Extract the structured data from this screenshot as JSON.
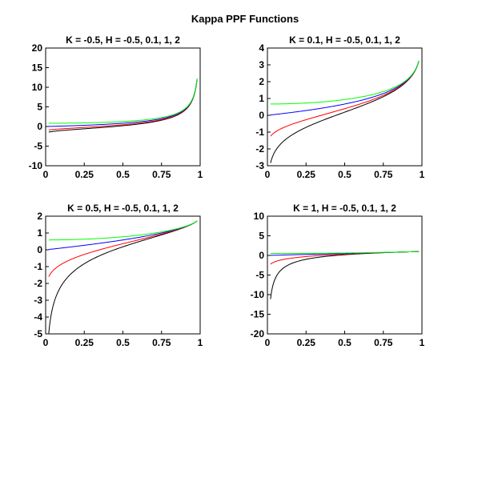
{
  "figure": {
    "title": "Kappa PPF Functions"
  },
  "colors": {
    "H=-0.5": "#000000",
    "H=0.1": "#ff0000",
    "H=1": "#0000ff",
    "H=2": "#00ff00"
  },
  "chart_data": [
    {
      "type": "line",
      "title": "K = -0.5, H = -0.5, 0.1, 1, 2",
      "k": -0.5,
      "xlim": [
        0,
        1
      ],
      "ylim": [
        -10,
        20
      ],
      "xticks": [
        "0",
        "0.25",
        "0.5",
        "0.75",
        "1"
      ],
      "yticks": [
        "-10",
        "-5",
        "0",
        "5",
        "10",
        "15",
        "20"
      ],
      "x": [
        0.02,
        0.25,
        0.5,
        0.75,
        0.85,
        0.9,
        0.95,
        0.98
      ],
      "series": [
        {
          "h": -0.5,
          "color": "#000000",
          "values": [
            -1.2,
            -0.06,
            0.83,
            2.25,
            3.45,
            4.56,
            7.04,
            12.0
          ]
        },
        {
          "h": 0.1,
          "color": "#ff0000",
          "values": [
            -0.73,
            0.09,
            0.9,
            2.25,
            3.41,
            4.5,
            6.95,
            11.9
          ]
        },
        {
          "h": 1,
          "color": "#0000ff",
          "values": [
            0.04,
            0.62,
            1.24,
            2.45,
            3.56,
            4.62,
            7.05,
            12.0
          ]
        },
        {
          "h": 2,
          "color": "#00ff00",
          "values": [
            0.65,
            1.18,
            1.72,
            2.82,
            3.86,
            4.89,
            7.27,
            12.1
          ]
        }
      ]
    },
    {
      "type": "line",
      "title": "K = 0.1, H = -0.5, 0.1, 1, 2",
      "k": 0.1,
      "xlim": [
        0,
        1
      ],
      "ylim": [
        -3,
        4
      ],
      "xticks": [
        "0",
        "0.25",
        "0.5",
        "0.75",
        "1"
      ],
      "yticks": [
        "-3",
        "-2",
        "-1",
        "0",
        "1",
        "2",
        "3",
        "4"
      ],
      "x": [
        0.02,
        0.25,
        0.5,
        0.75,
        0.85,
        0.9,
        0.95,
        0.98
      ],
      "series": [
        {
          "h": -0.5,
          "color": "#000000",
          "values": [
            -2.85,
            -0.52,
            0.3,
            1.16,
            1.69,
            2.09,
            2.7,
            3.3
          ]
        },
        {
          "h": 0.1,
          "color": "#ff0000",
          "values": [
            -1.25,
            -0.2,
            0.4,
            1.18,
            1.7,
            2.1,
            2.7,
            3.3
          ]
        },
        {
          "h": 1,
          "color": "#0000ff",
          "values": [
            0.02,
            0.34,
            0.71,
            1.35,
            1.82,
            2.19,
            2.77,
            3.34
          ]
        },
        {
          "h": 2,
          "color": "#00ff00",
          "values": [
            0.65,
            0.82,
            1.06,
            1.57,
            1.98,
            2.32,
            2.86,
            3.4
          ]
        }
      ]
    },
    {
      "type": "line",
      "title": "K = 0.5, H = -0.5, 0.1, 1, 2",
      "k": 0.5,
      "xlim": [
        0,
        1
      ],
      "ylim": [
        -5,
        2
      ],
      "xticks": [
        "0",
        "0.25",
        "0.5",
        "0.75",
        "1"
      ],
      "yticks": [
        "-5",
        "-4",
        "-3",
        "-2",
        "-1",
        "0",
        "1",
        "2"
      ],
      "x": [
        0.02,
        0.25,
        0.5,
        0.75,
        0.85,
        0.9,
        0.95,
        0.98
      ],
      "series": [
        {
          "h": -0.5,
          "color": "#000000",
          "values": [
            -4.9,
            -0.84,
            0.23,
            0.93,
            1.27,
            1.46,
            1.66,
            1.75
          ]
        },
        {
          "h": 0.1,
          "color": "#ff0000",
          "values": [
            -1.55,
            -0.22,
            0.42,
            0.98,
            1.28,
            1.46,
            1.66,
            1.75
          ]
        },
        {
          "h": 1,
          "color": "#0000ff",
          "values": [
            0.02,
            0.27,
            0.59,
            1.0,
            1.28,
            1.46,
            1.66,
            1.75
          ]
        },
        {
          "h": 2,
          "color": "#00ff00",
          "values": [
            0.6,
            0.68,
            0.84,
            1.14,
            1.36,
            1.51,
            1.69,
            1.77
          ]
        }
      ]
    },
    {
      "type": "line",
      "title": "K = 1, H = -0.5, 0.1, 1, 2",
      "k": 1,
      "xlim": [
        0,
        1
      ],
      "ylim": [
        -20,
        10
      ],
      "xticks": [
        "0",
        "0.25",
        "0.5",
        "0.75",
        "1"
      ],
      "yticks": [
        "-20",
        "-15",
        "-10",
        "-5",
        "0",
        "5",
        "10"
      ],
      "x": [
        0.02,
        0.25,
        0.5,
        0.75,
        0.85,
        0.9,
        0.95,
        0.98
      ],
      "series": [
        {
          "h": -0.5,
          "color": "#000000",
          "values": [
            -10.8,
            -1.36,
            -0.02,
            0.57,
            0.75,
            0.83,
            0.92,
            0.96
          ]
        },
        {
          "h": 0.1,
          "color": "#ff0000",
          "values": [
            -1.95,
            -0.29,
            0.3,
            0.65,
            0.79,
            0.86,
            0.93,
            0.97
          ]
        },
        {
          "h": 1,
          "color": "#0000ff",
          "values": [
            0.02,
            0.25,
            0.5,
            0.75,
            0.85,
            0.9,
            0.95,
            0.98
          ]
        },
        {
          "h": 2,
          "color": "#00ff00",
          "values": [
            0.5,
            0.58,
            0.69,
            0.84,
            0.91,
            0.94,
            0.97,
            0.99
          ]
        }
      ]
    }
  ]
}
